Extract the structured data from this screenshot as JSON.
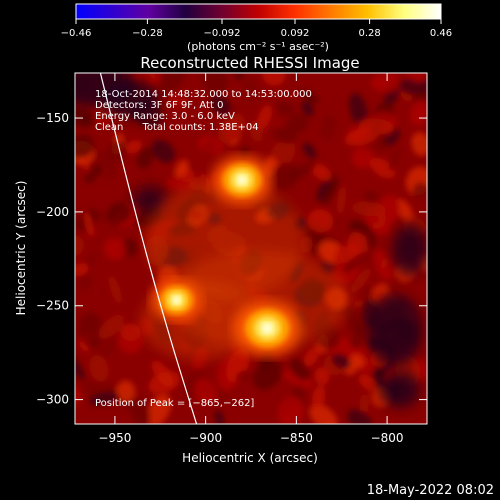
{
  "chart_data": {
    "type": "heatmap",
    "title": "Reconstructed RHESSI Image",
    "xlabel": "Heliocentric X (arcsec)",
    "ylabel": "Heliocentric Y (arcsec)",
    "xlim": [
      -972,
      -778
    ],
    "ylim": [
      -313,
      -126
    ],
    "x_ticks": [
      {
        "value": -950,
        "label": "−950"
      },
      {
        "value": -900,
        "label": "−900"
      },
      {
        "value": -850,
        "label": "−850"
      },
      {
        "value": -800,
        "label": "−800"
      }
    ],
    "y_ticks": [
      {
        "value": -150,
        "label": "−150"
      },
      {
        "value": -200,
        "label": "−200"
      },
      {
        "value": -250,
        "label": "−250"
      },
      {
        "value": -300,
        "label": "−300"
      }
    ],
    "colorbar": {
      "min": -0.46,
      "max": 0.46,
      "ticks": [
        {
          "value": -0.46,
          "label": "−0.46"
        },
        {
          "value": -0.28,
          "label": "−0.28"
        },
        {
          "value": -0.092,
          "label": "−0.092"
        },
        {
          "value": 0.092,
          "label": "0.092"
        },
        {
          "value": 0.28,
          "label": "0.28"
        },
        {
          "value": 0.46,
          "label": "0.46"
        }
      ],
      "unit_label": "(photons cm⁻² s⁻¹ asec⁻²)",
      "colors": [
        "#0000ff",
        "#3000d0",
        "#6000a0",
        "#200040",
        "#700030",
        "#c00000",
        "#ff3000",
        "#ff7a00",
        "#ffc000",
        "#ffff80",
        "#ffffff"
      ]
    },
    "sources": [
      {
        "x": -880,
        "y": -183,
        "intensity": 0.4
      },
      {
        "x": -866,
        "y": -262,
        "intensity": 0.46
      },
      {
        "x": -916,
        "y": -247,
        "intensity": 0.34
      }
    ],
    "limb_curve": [
      {
        "x": -958,
        "y": -126
      },
      {
        "x": -939,
        "y": -200
      },
      {
        "x": -922,
        "y": -260
      },
      {
        "x": -905,
        "y": -313
      }
    ],
    "annotations": [
      "18-Oct-2014 14:48:32.000 to 14:53:00.000",
      "Detectors: 3F 6F 9F, Att 0",
      "Energy Range: 3.0 - 6.0 keV",
      "Clean      Total counts: 1.38E+04"
    ],
    "peak_label": "Position of Peak = [−865,−262]",
    "timestamp": "18-May-2022 08:02"
  }
}
